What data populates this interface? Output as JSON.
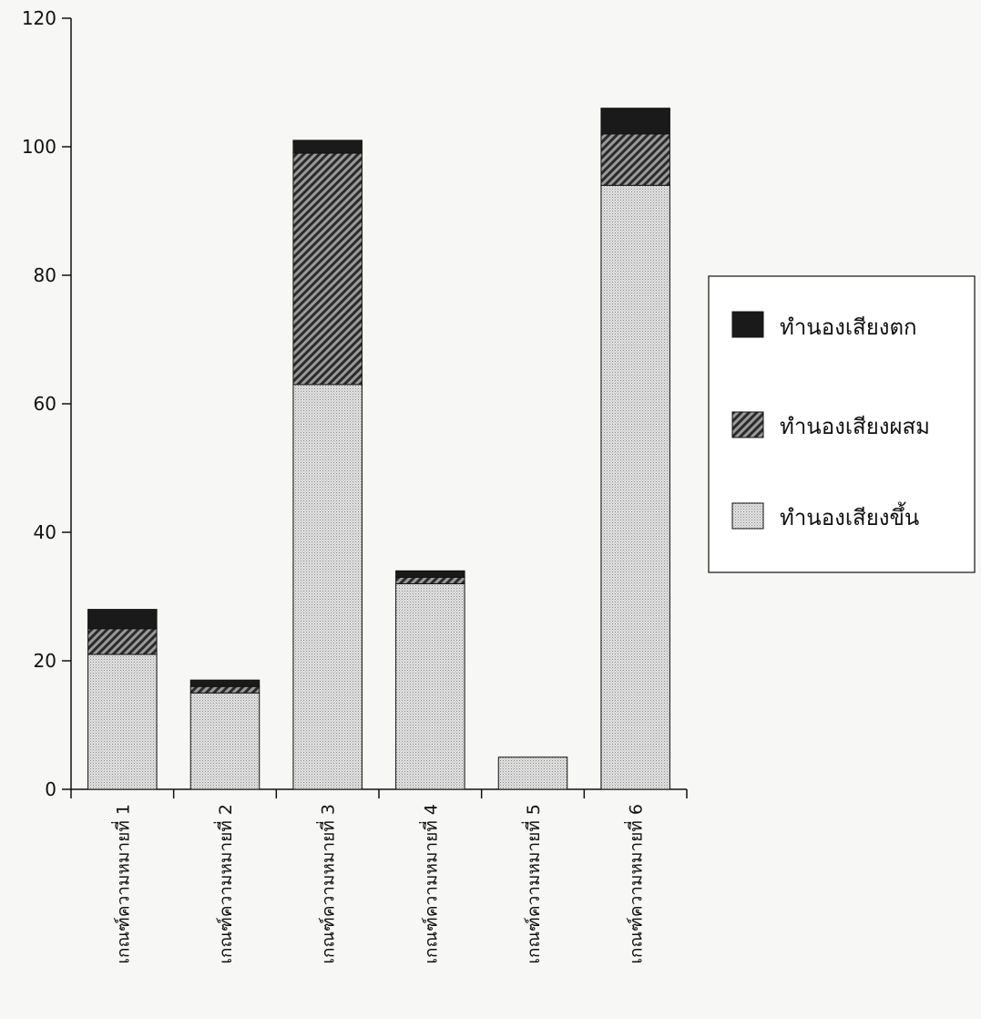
{
  "chart_data": {
    "type": "bar",
    "stacked": true,
    "categories": [
      "เกณฑ์ความหมายที่ 1",
      "เกณฑ์ความหมายที่ 2",
      "เกณฑ์ความหมายที่ 3",
      "เกณฑ์ความหมายที่ 4",
      "เกณฑ์ความหมายที่ 5",
      "เกณฑ์ความหมายที่ 6"
    ],
    "series": [
      {
        "name": "ทำนองเสียงขึ้น",
        "values": [
          21,
          15,
          63,
          32,
          5,
          94
        ],
        "pattern": "dotted",
        "color": "#d9d9d9"
      },
      {
        "name": "ทำนองเสียงผสม",
        "values": [
          4,
          1,
          36,
          1,
          0,
          8
        ],
        "pattern": "hatched",
        "color": "#555555"
      },
      {
        "name": "ทำนองเสียงตก",
        "values": [
          3,
          1,
          2,
          1,
          0,
          4
        ],
        "pattern": "solid",
        "color": "#1a1a1a"
      }
    ],
    "legend_order": [
      "ทำนองเสียงตก",
      "ทำนองเสียงผสม",
      "ทำนองเสียงขึ้น"
    ],
    "yticks": [
      "0",
      "20",
      "40",
      "60",
      "80",
      "100",
      "120"
    ],
    "ylim": [
      0,
      120
    ],
    "grid": false,
    "legend_position": "right",
    "title": "",
    "xlabel": "",
    "ylabel": ""
  }
}
